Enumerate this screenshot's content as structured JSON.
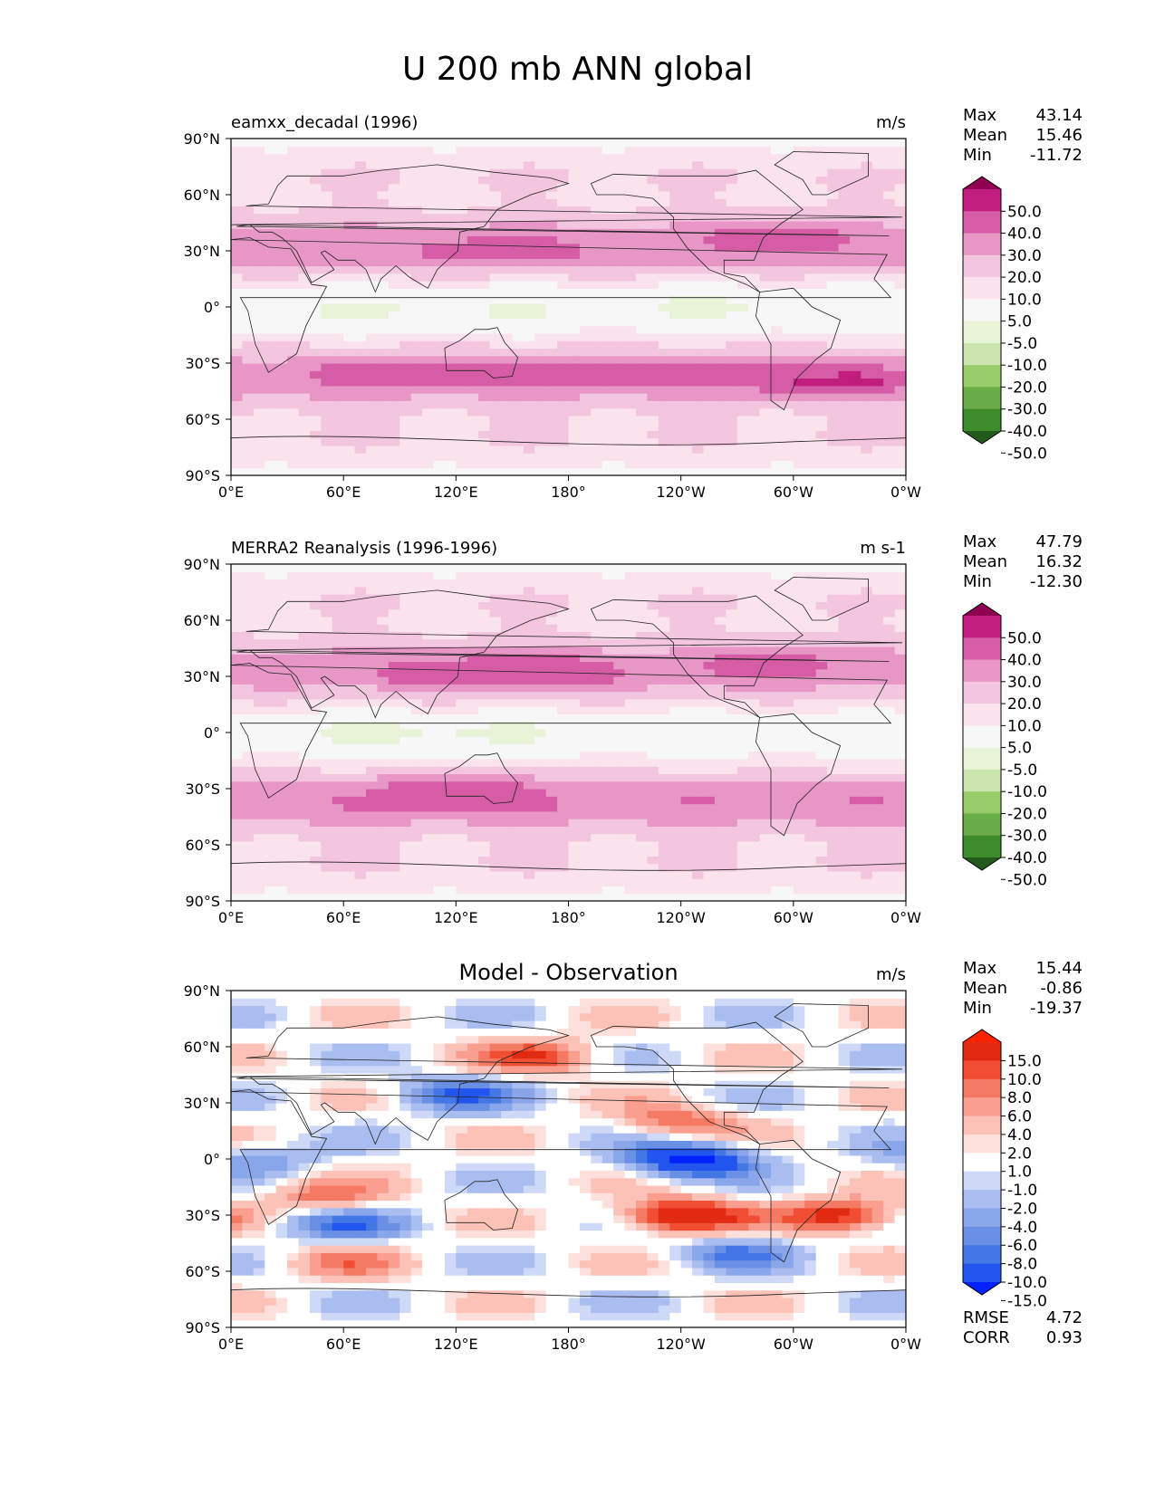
{
  "figure_title": "U 200 mb ANN global",
  "colors": {
    "model_cmap": [
      "#225a1c",
      "#3d8b2a",
      "#6aac47",
      "#99cc6a",
      "#cce5af",
      "#e8f3d8",
      "#f7f7f7",
      "#fbe3ee",
      "#f3c5df",
      "#e796c6",
      "#d65ca6",
      "#c01d7e",
      "#8e0152"
    ],
    "diff_cmap": [
      "#0022ff",
      "#2255ee",
      "#4477e6",
      "#6a90e6",
      "#8aa6ea",
      "#aabdf0",
      "#cdd9f7",
      "#ffffff",
      "#fde0dc",
      "#fcc2b8",
      "#fa9f8f",
      "#f57a64",
      "#f04d33",
      "#e02b12",
      "#ff2200"
    ]
  },
  "chart_data": [
    {
      "type": "heatmap",
      "panel": "model",
      "title": "eamxx_decadal (1996)",
      "units": "m/s",
      "xlabel": "",
      "ylabel": "",
      "xlim": [
        0,
        360
      ],
      "ylim": [
        -90,
        90
      ],
      "x_ticks": [
        "0°E",
        "60°E",
        "120°E",
        "180°",
        "120°W",
        "60°W",
        "0°W"
      ],
      "y_ticks": [
        "90°N",
        "60°N",
        "30°N",
        "0°",
        "30°S",
        "60°S",
        "90°S"
      ],
      "stats": [
        {
          "label": "Max",
          "value": "43.14"
        },
        {
          "label": "Mean",
          "value": "15.46"
        },
        {
          "label": "Min",
          "value": "-11.72"
        }
      ],
      "colorbar_ticks": [
        "50.0",
        "40.0",
        "30.0",
        "20.0",
        "10.0",
        "5.0",
        "-5.0",
        "-10.0",
        "-20.0",
        "-30.0",
        "-40.0",
        "-50.0"
      ],
      "jets": [
        {
          "lat": 30,
          "lon_start": 0,
          "lon_end": 360,
          "value": 28
        },
        {
          "lat": 30,
          "lon_start": 120,
          "lon_end": 170,
          "value": 36
        },
        {
          "lat": 38,
          "lon_start": 270,
          "lon_end": 310,
          "value": 38
        },
        {
          "lat": -35,
          "lon_start": 60,
          "lon_end": 330,
          "value": 36
        },
        {
          "lat": -40,
          "lon_start": 300,
          "lon_end": 340,
          "value": 43
        },
        {
          "lat": -2,
          "lon_start": 20,
          "lon_end": 160,
          "value": -6
        },
        {
          "lat": 0,
          "lon_start": 240,
          "lon_end": 300,
          "value": -7
        }
      ]
    },
    {
      "type": "heatmap",
      "panel": "obs",
      "title": "MERRA2 Reanalysis (1996-1996)",
      "units": "m s-1",
      "xlabel": "",
      "ylabel": "",
      "xlim": [
        0,
        360
      ],
      "ylim": [
        -90,
        90
      ],
      "x_ticks": [
        "0°E",
        "60°E",
        "120°E",
        "180°",
        "120°W",
        "60°W",
        "0°W"
      ],
      "y_ticks": [
        "90°N",
        "60°N",
        "30°N",
        "0°",
        "30°S",
        "60°S",
        "90°S"
      ],
      "stats": [
        {
          "label": "Max",
          "value": "47.79"
        },
        {
          "label": "Mean",
          "value": "16.32"
        },
        {
          "label": "Min",
          "value": "-12.30"
        }
      ],
      "colorbar_ticks": [
        "50.0",
        "40.0",
        "30.0",
        "20.0",
        "10.0",
        "5.0",
        "-5.0",
        "-10.0",
        "-20.0",
        "-30.0",
        "-40.0",
        "-50.0"
      ],
      "jets": [
        {
          "lat": 32,
          "lon_start": 0,
          "lon_end": 360,
          "value": 27
        },
        {
          "lat": 33,
          "lon_start": 100,
          "lon_end": 190,
          "value": 42
        },
        {
          "lat": 38,
          "lon_start": 270,
          "lon_end": 300,
          "value": 38
        },
        {
          "lat": -33,
          "lon_start": 90,
          "lon_end": 150,
          "value": 45
        },
        {
          "lat": -35,
          "lon_start": 0,
          "lon_end": 360,
          "value": 30
        },
        {
          "lat": 0,
          "lon_start": 60,
          "lon_end": 150,
          "value": -8
        }
      ]
    },
    {
      "type": "heatmap",
      "panel": "diff",
      "title": "Model - Observation",
      "units": "m/s",
      "xlabel": "",
      "ylabel": "",
      "xlim": [
        0,
        360
      ],
      "ylim": [
        -90,
        90
      ],
      "x_ticks": [
        "0°E",
        "60°E",
        "120°E",
        "180°",
        "120°W",
        "60°W",
        "0°W"
      ],
      "y_ticks": [
        "90°N",
        "60°N",
        "30°N",
        "0°",
        "30°S",
        "60°S",
        "90°S"
      ],
      "stats": [
        {
          "label": "Max",
          "value": "15.44"
        },
        {
          "label": "Mean",
          "value": "-0.86"
        },
        {
          "label": "Min",
          "value": "-19.37"
        }
      ],
      "colorbar_ticks": [
        "15.0",
        "10.0",
        "8.0",
        "6.0",
        "4.0",
        "2.0",
        "1.0",
        "-1.0",
        "-2.0",
        "-4.0",
        "-6.0",
        "-8.0",
        "-10.0",
        "-15.0"
      ],
      "extra_stats": [
        {
          "label": "RMSE",
          "value": "4.72"
        },
        {
          "label": "CORR",
          "value": "0.93"
        }
      ],
      "anomalies": [
        {
          "lat": 0,
          "lon": 245,
          "value": -17
        },
        {
          "lat": -30,
          "lon": 240,
          "value": 15
        },
        {
          "lat": -30,
          "lon": 325,
          "value": 12
        },
        {
          "lat": 35,
          "lon": 120,
          "value": -9
        },
        {
          "lat": 55,
          "lon": 165,
          "value": 9
        },
        {
          "lat": 20,
          "lon": 240,
          "value": 8
        },
        {
          "lat": -35,
          "lon": 60,
          "value": -8
        },
        {
          "lat": -20,
          "lon": 50,
          "value": 7
        },
        {
          "lat": -50,
          "lon": 270,
          "value": -7
        },
        {
          "lat": 0,
          "lon": 15,
          "value": -5
        },
        {
          "lat": -55,
          "lon": 60,
          "value": 5
        }
      ]
    }
  ]
}
